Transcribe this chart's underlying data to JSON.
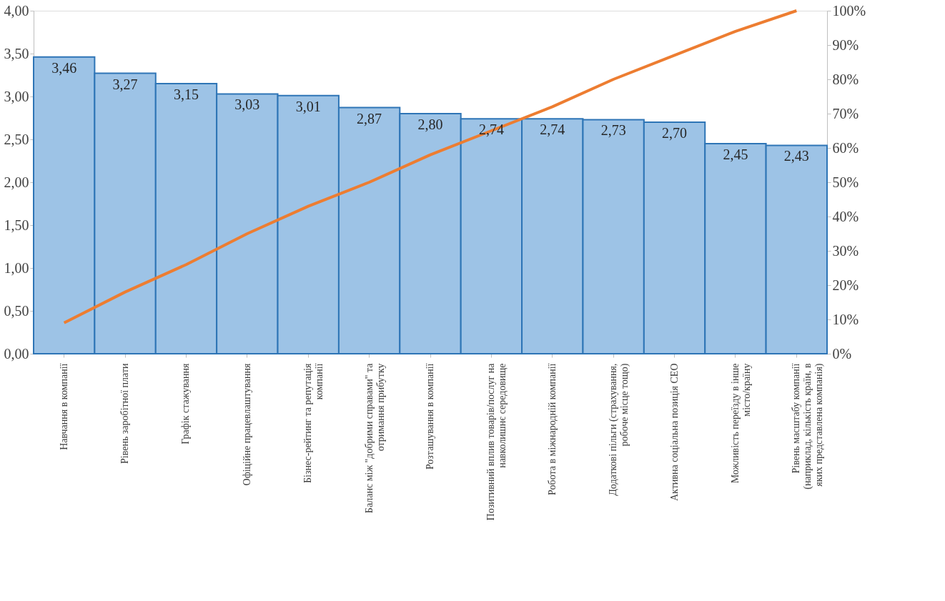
{
  "chart_data": {
    "type": "bar",
    "categories": [
      "Навчання в компанії",
      "Рівень заробітної плати",
      "Графік стажування",
      "Офіційне працевлаштування",
      "Бізнес-рейтинг та репутація компанії",
      "Баланс між \"добрими справами\" та отримання прибутку",
      "Розташування в компанії",
      "Позитивний вплив товарів/послуг на навколишнє середовище",
      "Робота в міжнародній компанії",
      "Додаткові пільги (страхування, робоче місце тощо)",
      "Активна соціальна позиція CEO",
      "Можливість переїзду в інше місто/країну",
      "Рівень масштабу компанії (наприклад, кількість країн, в яких представлена компанія)"
    ],
    "series": [
      {
        "color": "#9dc3e6",
        "values": [
          3.46,
          3.27,
          3.15,
          3.03,
          3.01,
          2.87,
          2.8,
          2.74,
          2.74,
          2.73,
          2.7,
          2.45,
          2.43
        ],
        "value_labels": [
          "3,46",
          "3,27",
          "3,15",
          "3,03",
          "3,01",
          "2,87",
          "2,80",
          "2,74",
          "2,74",
          "2,73",
          "2,70",
          "2,45",
          "2,43"
        ]
      },
      {
        "type": "line",
        "axis": "y2",
        "color": "#ed7d31",
        "values": [
          9,
          18,
          26,
          35,
          43,
          50,
          58,
          65,
          72,
          80,
          87,
          94,
          100
        ]
      }
    ],
    "ylim": [
      0,
      4
    ],
    "yticks": [
      {
        "value": 0,
        "label": "0,00"
      },
      {
        "value": 0.5,
        "label": "0,50"
      },
      {
        "value": 1,
        "label": "1,00"
      },
      {
        "value": 1.5,
        "label": "1,50"
      },
      {
        "value": 2,
        "label": "2,00"
      },
      {
        "value": 2.5,
        "label": "2,50"
      },
      {
        "value": 3,
        "label": "3,00"
      },
      {
        "value": 3.5,
        "label": "3,50"
      },
      {
        "value": 4,
        "label": "4,00"
      }
    ],
    "y2lim": [
      0,
      100
    ],
    "y2ticks": [
      {
        "value": 0,
        "label": "0%"
      },
      {
        "value": 10,
        "label": "10%"
      },
      {
        "value": 20,
        "label": "20%"
      },
      {
        "value": 30,
        "label": "30%"
      },
      {
        "value": 40,
        "label": "40%"
      },
      {
        "value": 50,
        "label": "50%"
      },
      {
        "value": 60,
        "label": "60%"
      },
      {
        "value": 70,
        "label": "70%"
      },
      {
        "value": 80,
        "label": "80%"
      },
      {
        "value": 90,
        "label": "90%"
      },
      {
        "value": 100,
        "label": "100%"
      }
    ],
    "grid": false,
    "marker": "none",
    "line_style": "solid"
  }
}
